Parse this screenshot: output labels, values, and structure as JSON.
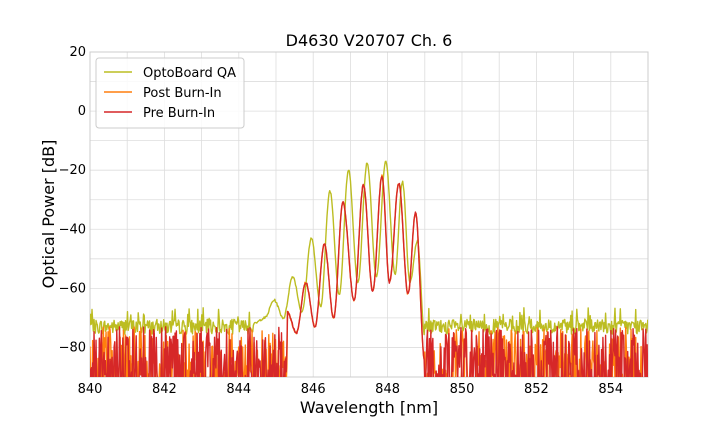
{
  "chart_data": {
    "type": "line",
    "title": "D4630 V20707 Ch. 6",
    "xlabel": "Wavelength [nm]",
    "ylabel": "Optical Power [dB]",
    "xlim": [
      840,
      855
    ],
    "ylim": [
      -90,
      20
    ],
    "xticks": [
      840,
      842,
      844,
      846,
      848,
      850,
      852,
      854
    ],
    "yticks": [
      20,
      0,
      -20,
      -40,
      -60,
      -80
    ],
    "ytick_labels": [
      "20",
      "0",
      "−20",
      "−40",
      "−60",
      "−80"
    ],
    "grid": true,
    "legend_position": "top-left",
    "series": [
      {
        "name": "OptoBoard QA",
        "color": "#bcbd22",
        "noise_floor": -73,
        "peaks": [
          [
            844.4,
            -72
          ],
          [
            844.95,
            -64
          ],
          [
            845.45,
            -56
          ],
          [
            845.95,
            -43
          ],
          [
            846.45,
            -27
          ],
          [
            846.95,
            -20
          ],
          [
            847.45,
            -17.5
          ],
          [
            847.95,
            -17
          ],
          [
            848.4,
            -24
          ],
          [
            848.8,
            -44
          ]
        ],
        "valleys": [
          [
            844.7,
            -70
          ],
          [
            845.2,
            -70
          ],
          [
            845.7,
            -68
          ],
          [
            846.2,
            -66
          ],
          [
            846.7,
            -62
          ],
          [
            847.2,
            -58
          ],
          [
            847.7,
            -56
          ],
          [
            848.2,
            -55
          ],
          [
            848.6,
            -58
          ],
          [
            849.0,
            -76
          ]
        ]
      },
      {
        "name": "Post Burn-In",
        "color": "#ff7f0e",
        "noise_floor": -80,
        "peaks": [
          [
            845.3,
            -68
          ],
          [
            845.8,
            -58
          ],
          [
            846.3,
            -45
          ],
          [
            846.8,
            -31
          ],
          [
            847.35,
            -25
          ],
          [
            847.85,
            -22
          ],
          [
            848.3,
            -24.5
          ],
          [
            848.75,
            -34.5
          ]
        ],
        "valleys": [
          [
            845.55,
            -75
          ],
          [
            846.05,
            -73
          ],
          [
            846.55,
            -70
          ],
          [
            847.1,
            -64
          ],
          [
            847.6,
            -61
          ],
          [
            848.05,
            -58
          ],
          [
            848.55,
            -62
          ],
          [
            849.0,
            -85
          ]
        ]
      },
      {
        "name": "Pre Burn-In",
        "color": "#d62728",
        "noise_floor": -80,
        "peaks": [
          [
            845.3,
            -68
          ],
          [
            845.8,
            -58
          ],
          [
            846.3,
            -45
          ],
          [
            846.8,
            -31
          ],
          [
            847.35,
            -25
          ],
          [
            847.85,
            -22
          ],
          [
            848.3,
            -24.5
          ],
          [
            848.75,
            -34.5
          ]
        ],
        "valleys": [
          [
            845.55,
            -75
          ],
          [
            846.05,
            -73
          ],
          [
            846.55,
            -70
          ],
          [
            847.1,
            -64
          ],
          [
            847.6,
            -61
          ],
          [
            848.05,
            -58
          ],
          [
            848.55,
            -62
          ],
          [
            849.0,
            -85
          ]
        ]
      }
    ]
  }
}
